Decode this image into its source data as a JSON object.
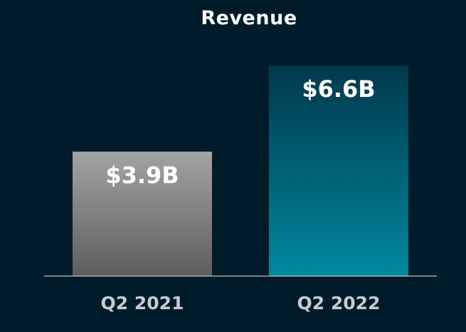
{
  "chart_data": {
    "type": "bar",
    "title": "Revenue",
    "xlabel": "",
    "ylabel": "",
    "categories": [
      "Q2 2021",
      "Q2 2022"
    ],
    "values": [
      3.9,
      6.6
    ],
    "value_labels": [
      "$3.9B",
      "$6.6B"
    ],
    "unit": "$B",
    "ylim": [
      0,
      7.5
    ],
    "grid": false,
    "legend": "none",
    "colors": {
      "background": "#001c2a",
      "bar_2021_top": "#a3a3a3",
      "bar_2021_bottom": "#5e5e5e",
      "bar_2022_top": "#00394b",
      "bar_2022_bottom": "#00889f",
      "value_label": "#ffffff",
      "category_label": "#c8ccd0",
      "baseline": "#d8dde2"
    }
  }
}
